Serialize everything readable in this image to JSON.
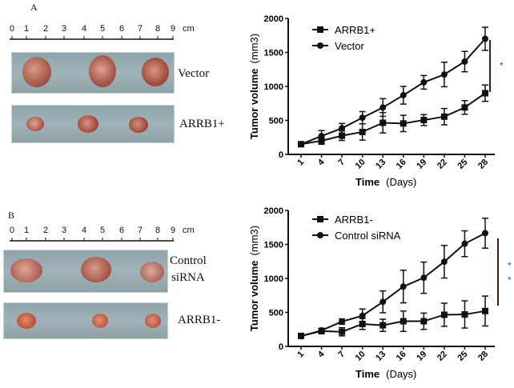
{
  "panels": [
    {
      "label": "A",
      "ruler": {
        "ticks": [
          "0",
          "1",
          "2",
          "3",
          "4",
          "5",
          "6",
          "7",
          "8",
          "9"
        ],
        "unit": "cm"
      },
      "photos": [
        {
          "label_lines": [
            "Vector"
          ]
        },
        {
          "label_lines": [
            "ARRB1+"
          ]
        }
      ]
    },
    {
      "label": "B",
      "ruler": {
        "ticks": [
          "0",
          "1",
          "2",
          "3",
          "4",
          "5",
          "6",
          "7",
          "8",
          "9"
        ],
        "unit": "cm"
      },
      "photos": [
        {
          "label_lines": [
            "Control",
            "siRNA"
          ]
        },
        {
          "label_lines": [
            "ARRB1-"
          ]
        }
      ]
    }
  ],
  "chart_data": [
    {
      "type": "line",
      "xlabel": "Time",
      "xlabel_unit": "(Days)",
      "ylabel": "Tumor volume",
      "ylabel_unit": "(mm3)",
      "categories": [
        "1",
        "4",
        "7",
        "10",
        "13",
        "16",
        "19",
        "22",
        "25",
        "28"
      ],
      "ylim": [
        0,
        2000
      ],
      "yticks": [
        "0",
        "500",
        "1000",
        "1500",
        "2000"
      ],
      "legend_position": "top-left",
      "significance": "*",
      "series": [
        {
          "name": "ARRB1+",
          "marker": "square",
          "values": [
            150,
            200,
            275,
            330,
            465,
            455,
            505,
            555,
            690,
            900
          ],
          "errors": [
            30,
            50,
            70,
            120,
            150,
            120,
            80,
            120,
            100,
            120
          ]
        },
        {
          "name": "Vector",
          "marker": "circle",
          "values": [
            150,
            270,
            385,
            540,
            690,
            870,
            1060,
            1175,
            1365,
            1700
          ],
          "errors": [
            30,
            80,
            70,
            90,
            130,
            130,
            100,
            180,
            150,
            170
          ]
        }
      ]
    },
    {
      "type": "line",
      "xlabel": "Time",
      "xlabel_unit": "(Days)",
      "ylabel": "Tumor volume",
      "ylabel_unit": "(mm3)",
      "categories": [
        "1",
        "4",
        "7",
        "10",
        "13",
        "16",
        "19",
        "22",
        "25",
        "28"
      ],
      "ylim": [
        0,
        2000
      ],
      "yticks": [
        "0",
        "500",
        "1000",
        "1500",
        "2000"
      ],
      "legend_position": "top-left",
      "significance": "* *",
      "series": [
        {
          "name": "ARRB1-",
          "marker": "square",
          "values": [
            155,
            225,
            215,
            330,
            310,
            370,
            370,
            465,
            470,
            520
          ],
          "errors": [
            20,
            40,
            60,
            80,
            90,
            150,
            120,
            170,
            200,
            220
          ]
        },
        {
          "name": "Control siRNA",
          "marker": "circle",
          "values": [
            150,
            235,
            365,
            450,
            655,
            880,
            1010,
            1245,
            1510,
            1665
          ],
          "errors": [
            20,
            30,
            40,
            100,
            160,
            240,
            230,
            240,
            190,
            220
          ]
        }
      ]
    }
  ]
}
